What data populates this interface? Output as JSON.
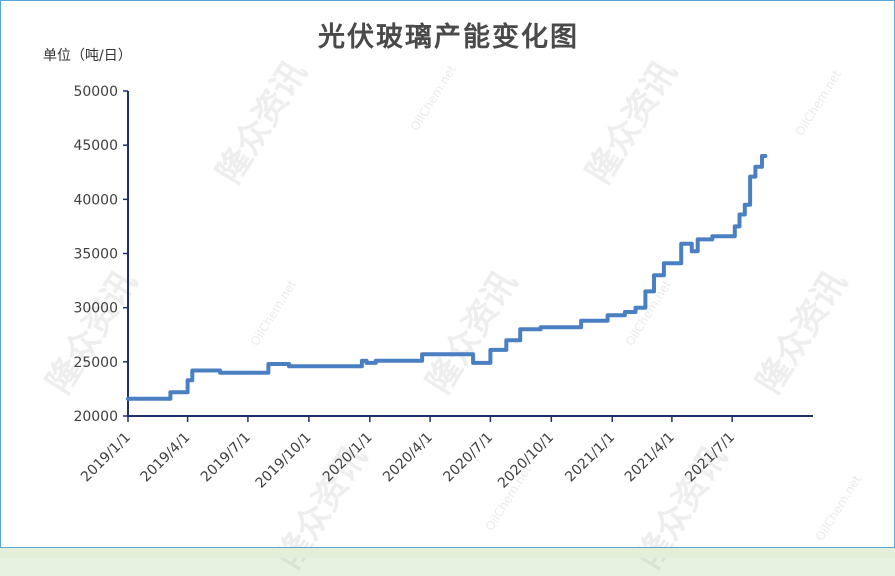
{
  "watermark": "隆众资讯",
  "watermark_site": "OilChem.net",
  "chart_data": {
    "type": "line",
    "title": "光伏玻璃产能变化图",
    "ylabel": "单位（吨/日）",
    "xlabel": "",
    "ylim": [
      20000,
      50000
    ],
    "yticks": [
      20000,
      25000,
      30000,
      35000,
      40000,
      45000,
      50000
    ],
    "xlim": [
      "2019-01-01",
      "2021-10-31"
    ],
    "xticks": [
      {
        "date": "2019-01-01",
        "label": "2019/1/1"
      },
      {
        "date": "2019-04-01",
        "label": "2019/4/1"
      },
      {
        "date": "2019-07-01",
        "label": "2019/7/1"
      },
      {
        "date": "2019-10-01",
        "label": "2019/10/1"
      },
      {
        "date": "2020-01-01",
        "label": "2020/1/1"
      },
      {
        "date": "2020-04-01",
        "label": "2020/4/1"
      },
      {
        "date": "2020-07-01",
        "label": "2020/7/1"
      },
      {
        "date": "2020-10-01",
        "label": "2020/10/1"
      },
      {
        "date": "2021-01-01",
        "label": "2021/1/1"
      },
      {
        "date": "2021-04-01",
        "label": "2021/4/1"
      },
      {
        "date": "2021-07-01",
        "label": "2021/7/1"
      }
    ],
    "line_color": "#4a7fc1",
    "axis_color": "#1f2f6b",
    "series": [
      {
        "step": true,
        "points": [
          [
            "2019-01-01",
            21600
          ],
          [
            "2019-03-06",
            22200
          ],
          [
            "2019-04-01",
            23300
          ],
          [
            "2019-04-08",
            24200
          ],
          [
            "2019-05-20",
            24000
          ],
          [
            "2019-08-01",
            24800
          ],
          [
            "2019-09-01",
            24600
          ],
          [
            "2019-12-20",
            25100
          ],
          [
            "2019-12-27",
            24900
          ],
          [
            "2020-01-10",
            25100
          ],
          [
            "2020-03-20",
            25700
          ],
          [
            "2020-06-05",
            24900
          ],
          [
            "2020-07-01",
            26100
          ],
          [
            "2020-07-25",
            27000
          ],
          [
            "2020-08-15",
            28000
          ],
          [
            "2020-09-15",
            28200
          ],
          [
            "2020-11-15",
            28800
          ],
          [
            "2020-12-25",
            29300
          ],
          [
            "2021-01-20",
            29600
          ],
          [
            "2021-02-05",
            30000
          ],
          [
            "2021-02-20",
            31500
          ],
          [
            "2021-03-05",
            33000
          ],
          [
            "2021-03-20",
            34100
          ],
          [
            "2021-04-15",
            35900
          ],
          [
            "2021-05-01",
            35200
          ],
          [
            "2021-05-10",
            36300
          ],
          [
            "2021-06-01",
            36600
          ],
          [
            "2021-07-05",
            37500
          ],
          [
            "2021-07-12",
            38600
          ],
          [
            "2021-07-20",
            39500
          ],
          [
            "2021-07-28",
            42100
          ],
          [
            "2021-08-05",
            43000
          ],
          [
            "2021-08-15",
            44000
          ],
          [
            "2021-08-20",
            44000
          ]
        ]
      }
    ]
  }
}
